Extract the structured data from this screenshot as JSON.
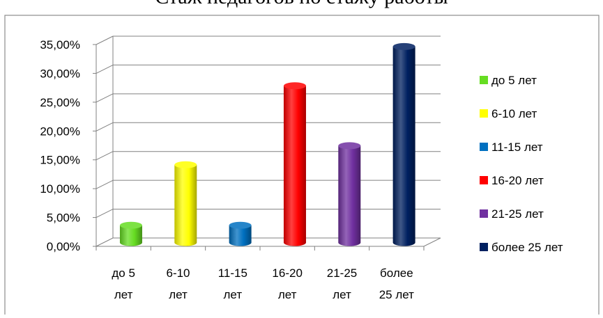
{
  "header": {
    "title_partial": "Стаж педагогов по стажу работы"
  },
  "chart_data": {
    "type": "bar",
    "title": "",
    "xlabel": "",
    "ylabel": "",
    "categories": [
      "до 5 лет",
      "6-10 лет",
      "11-15 лет",
      "16-20 лет",
      "21-25 лет",
      "более 25 лет"
    ],
    "category_labels": [
      [
        "до 5",
        "лет"
      ],
      [
        "6-10",
        "лет"
      ],
      [
        "11-15",
        "лет"
      ],
      [
        "16-20",
        "лет"
      ],
      [
        "21-25",
        "лет"
      ],
      [
        "более",
        "25 лет"
      ]
    ],
    "values": [
      0.03,
      0.135,
      0.03,
      0.272,
      0.168,
      0.34
    ],
    "colors": [
      "#66dd22",
      "#ffff00",
      "#0070c0",
      "#ff0000",
      "#7030a0",
      "#002060"
    ],
    "ylim": [
      0,
      0.35
    ],
    "yticks": [
      "0,00%",
      "5,00%",
      "10,00%",
      "15,00%",
      "20,00%",
      "25,00%",
      "30,00%",
      "35,00%"
    ],
    "grid": true,
    "legend_position": "right",
    "legend": [
      "до 5 лет",
      "6-10 лет",
      "11-15 лет",
      "16-20 лет",
      "21-25 лет",
      "более 25 лет"
    ]
  }
}
